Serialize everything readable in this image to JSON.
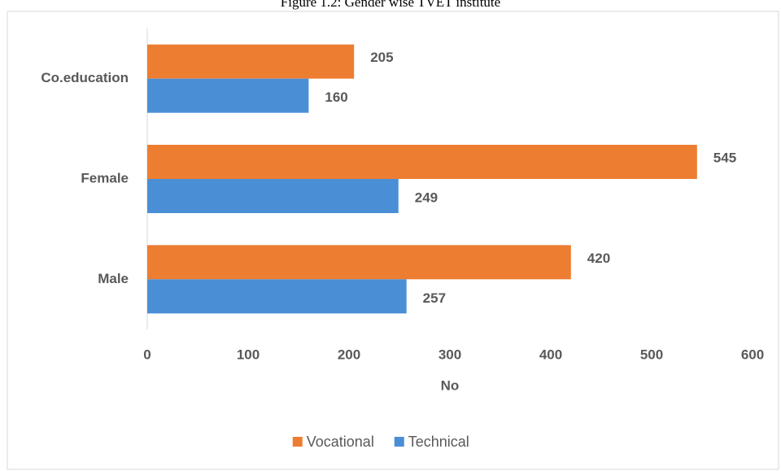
{
  "chart_data": {
    "type": "bar",
    "orientation": "horizontal",
    "title": "Figure 1.2: Gender wise TVET institute",
    "categories": [
      "Male",
      "Female",
      "Co.education"
    ],
    "series": [
      {
        "name": "Vocational",
        "color": "#ed7d31",
        "values": [
          420,
          545,
          205
        ]
      },
      {
        "name": "Technical",
        "color": "#4a8fd6",
        "values": [
          257,
          249,
          160
        ]
      }
    ],
    "x_label": "No",
    "xlim": [
      0,
      600
    ],
    "xticks": [
      0,
      100,
      200,
      300,
      400,
      500,
      600
    ],
    "grid": false,
    "legend": "bottom"
  }
}
